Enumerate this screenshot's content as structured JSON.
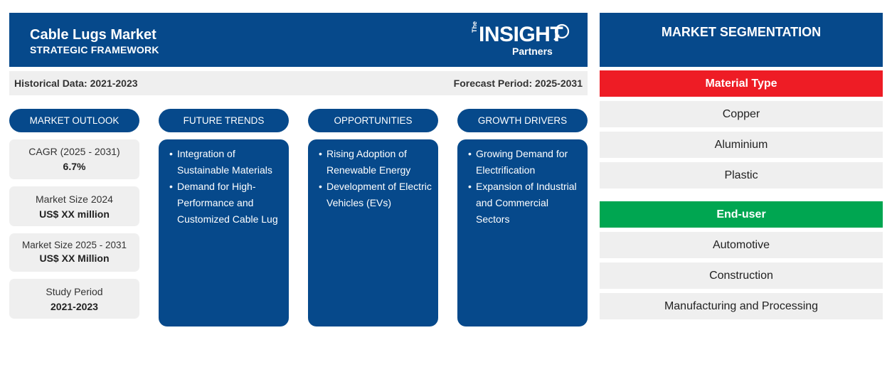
{
  "header": {
    "title": "Cable Lugs Market",
    "subtitle": "STRATEGIC FRAMEWORK",
    "logo": {
      "the": "The",
      "insight": "INSIGHT",
      "partners": "Partners"
    }
  },
  "periods": {
    "historical": "Historical Data: 2021-2023",
    "forecast": "Forecast Period: 2025-2031"
  },
  "columns": {
    "outlook": "MARKET OUTLOOK",
    "trends": "FUTURE TRENDS",
    "opportunities": "OPPORTUNITIES",
    "drivers": "GROWTH DRIVERS"
  },
  "outlook": [
    {
      "label": "CAGR (2025 - 2031)",
      "value": "6.7%"
    },
    {
      "label": "Market Size 2024",
      "value": "US$ XX million"
    },
    {
      "label": "Market Size 2025 - 2031",
      "value": "US$ XX Million"
    },
    {
      "label": "Study Period",
      "value": "2021-2023"
    }
  ],
  "trends": [
    "Integration of Sustainable Materials",
    "Demand for High-Performance and Customized Cable Lug"
  ],
  "opportunities": [
    "Rising Adoption of Renewable Energy",
    "Development of Electric Vehicles (EVs)"
  ],
  "drivers": [
    "Growing Demand for Electrification",
    "Expansion of Industrial and Commercial Sectors"
  ],
  "segmentation": {
    "title": "MARKET SEGMENTATION",
    "material": {
      "label": "Material Type",
      "color": "#ee1c25",
      "items": [
        "Copper",
        "Aluminium",
        "Plastic"
      ]
    },
    "enduser": {
      "label": "End-user",
      "color": "#00a651",
      "items": [
        "Automotive",
        "Construction",
        "Manufacturing and Processing"
      ]
    }
  },
  "colors": {
    "primary": "#06498b",
    "panel_bg": "#efefef"
  }
}
